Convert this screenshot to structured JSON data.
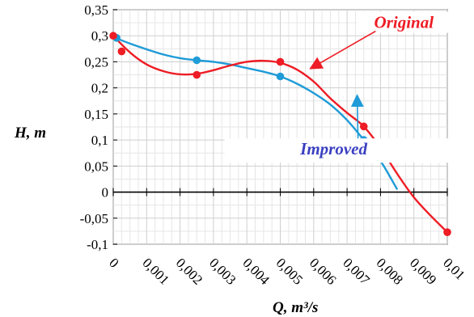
{
  "chart_data": {
    "type": "scatter",
    "title": "",
    "xlabel": "Q, m³/s",
    "ylabel": "H, m",
    "xlim": [
      0,
      0.01
    ],
    "ylim": [
      -0.1,
      0.35
    ],
    "grid": true,
    "x_ticks": [
      0,
      0.001,
      0.002,
      0.003,
      0.004,
      0.005,
      0.006,
      0.007,
      0.008,
      0.009,
      0.01
    ],
    "x_tick_labels": [
      "0",
      "0,001",
      "0,002",
      "0,003",
      "0,004",
      "0,005",
      "0,006",
      "0,007",
      "0,008",
      "0,009",
      "0,01"
    ],
    "y_ticks": [
      -0.1,
      -0.05,
      0,
      0.05,
      0.1,
      0.15,
      0.2,
      0.25,
      0.3,
      0.35
    ],
    "y_tick_labels": [
      "-0,1",
      "-0,05",
      "0",
      "0,05",
      "0,1",
      "0,15",
      "0,2",
      "0,25",
      "0,3",
      "0,35"
    ],
    "series": [
      {
        "name": "Original",
        "color": "#ee1c24",
        "points": [
          [
            0,
            0.3
          ],
          [
            0.00025,
            0.27
          ],
          [
            0.0025,
            0.225
          ],
          [
            0.005,
            0.25
          ],
          [
            0.0075,
            0.126
          ],
          [
            0.01,
            -0.077
          ]
        ],
        "curve": [
          [
            0,
            0.3
          ],
          [
            0.0005,
            0.268
          ],
          [
            0.001,
            0.245
          ],
          [
            0.0015,
            0.232
          ],
          [
            0.002,
            0.226
          ],
          [
            0.0025,
            0.227
          ],
          [
            0.003,
            0.234
          ],
          [
            0.0035,
            0.243
          ],
          [
            0.004,
            0.25
          ],
          [
            0.0045,
            0.252
          ],
          [
            0.005,
            0.248
          ],
          [
            0.0055,
            0.235
          ],
          [
            0.006,
            0.212
          ],
          [
            0.0065,
            0.18
          ],
          [
            0.007,
            0.152
          ],
          [
            0.0075,
            0.126
          ],
          [
            0.008,
            0.085
          ],
          [
            0.0085,
            0.035
          ],
          [
            0.009,
            -0.01
          ],
          [
            0.0095,
            -0.045
          ],
          [
            0.01,
            -0.077
          ]
        ]
      },
      {
        "name": "Improved",
        "color": "#1f9bd7",
        "points": [
          [
            0.0001,
            0.296
          ],
          [
            0.0025,
            0.253
          ],
          [
            0.005,
            0.222
          ],
          [
            0.0075,
            0.1
          ]
        ],
        "curve": [
          [
            0.0001,
            0.295
          ],
          [
            0.0005,
            0.285
          ],
          [
            0.001,
            0.274
          ],
          [
            0.0015,
            0.264
          ],
          [
            0.002,
            0.257
          ],
          [
            0.0025,
            0.253
          ],
          [
            0.003,
            0.25
          ],
          [
            0.0035,
            0.245
          ],
          [
            0.004,
            0.238
          ],
          [
            0.0045,
            0.231
          ],
          [
            0.005,
            0.222
          ],
          [
            0.0055,
            0.208
          ],
          [
            0.006,
            0.19
          ],
          [
            0.0065,
            0.168
          ],
          [
            0.007,
            0.138
          ],
          [
            0.0075,
            0.1
          ],
          [
            0.008,
            0.06
          ],
          [
            0.0085,
            0.005
          ]
        ]
      }
    ],
    "annotations": [
      {
        "text": "Original",
        "color": "#ee1c24",
        "x": 0.0087,
        "y": 0.315,
        "arrow_to": [
          0.0059,
          0.237
        ]
      },
      {
        "text": "Improved",
        "color": "#3a3fc0",
        "x": 0.0066,
        "y": 0.072,
        "arrow_to": [
          0.0073,
          0.186
        ]
      }
    ]
  }
}
